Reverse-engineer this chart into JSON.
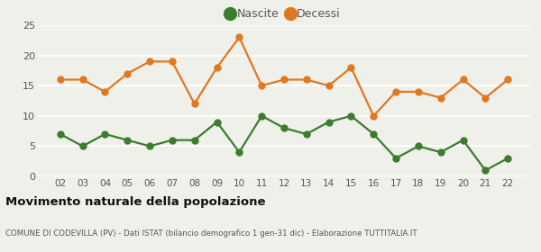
{
  "years": [
    "02",
    "03",
    "04",
    "05",
    "06",
    "07",
    "08",
    "09",
    "10",
    "11",
    "12",
    "13",
    "14",
    "15",
    "16",
    "17",
    "18",
    "19",
    "20",
    "21",
    "22"
  ],
  "nascite": [
    7,
    5,
    7,
    6,
    5,
    6,
    6,
    9,
    4,
    10,
    8,
    7,
    9,
    10,
    7,
    3,
    5,
    4,
    6,
    1,
    3
  ],
  "decessi": [
    16,
    16,
    14,
    17,
    19,
    19,
    12,
    18,
    23,
    15,
    16,
    16,
    15,
    18,
    10,
    14,
    14,
    13,
    16,
    13,
    16
  ],
  "nascite_color": "#3a7d2c",
  "decessi_color": "#e07820",
  "background_color": "#f0f0eb",
  "grid_color": "#ffffff",
  "ylim": [
    0,
    25
  ],
  "yticks": [
    0,
    5,
    10,
    15,
    20,
    25
  ],
  "title": "Movimento naturale della popolazione",
  "subtitle": "COMUNE DI CODEVILLA (PV) - Dati ISTAT (bilancio demografico 1 gen-31 dic) - Elaborazione TUTTITALIA.IT",
  "legend_nascite": "Nascite",
  "legend_decessi": "Decessi",
  "marker_size": 5,
  "line_width": 1.6
}
